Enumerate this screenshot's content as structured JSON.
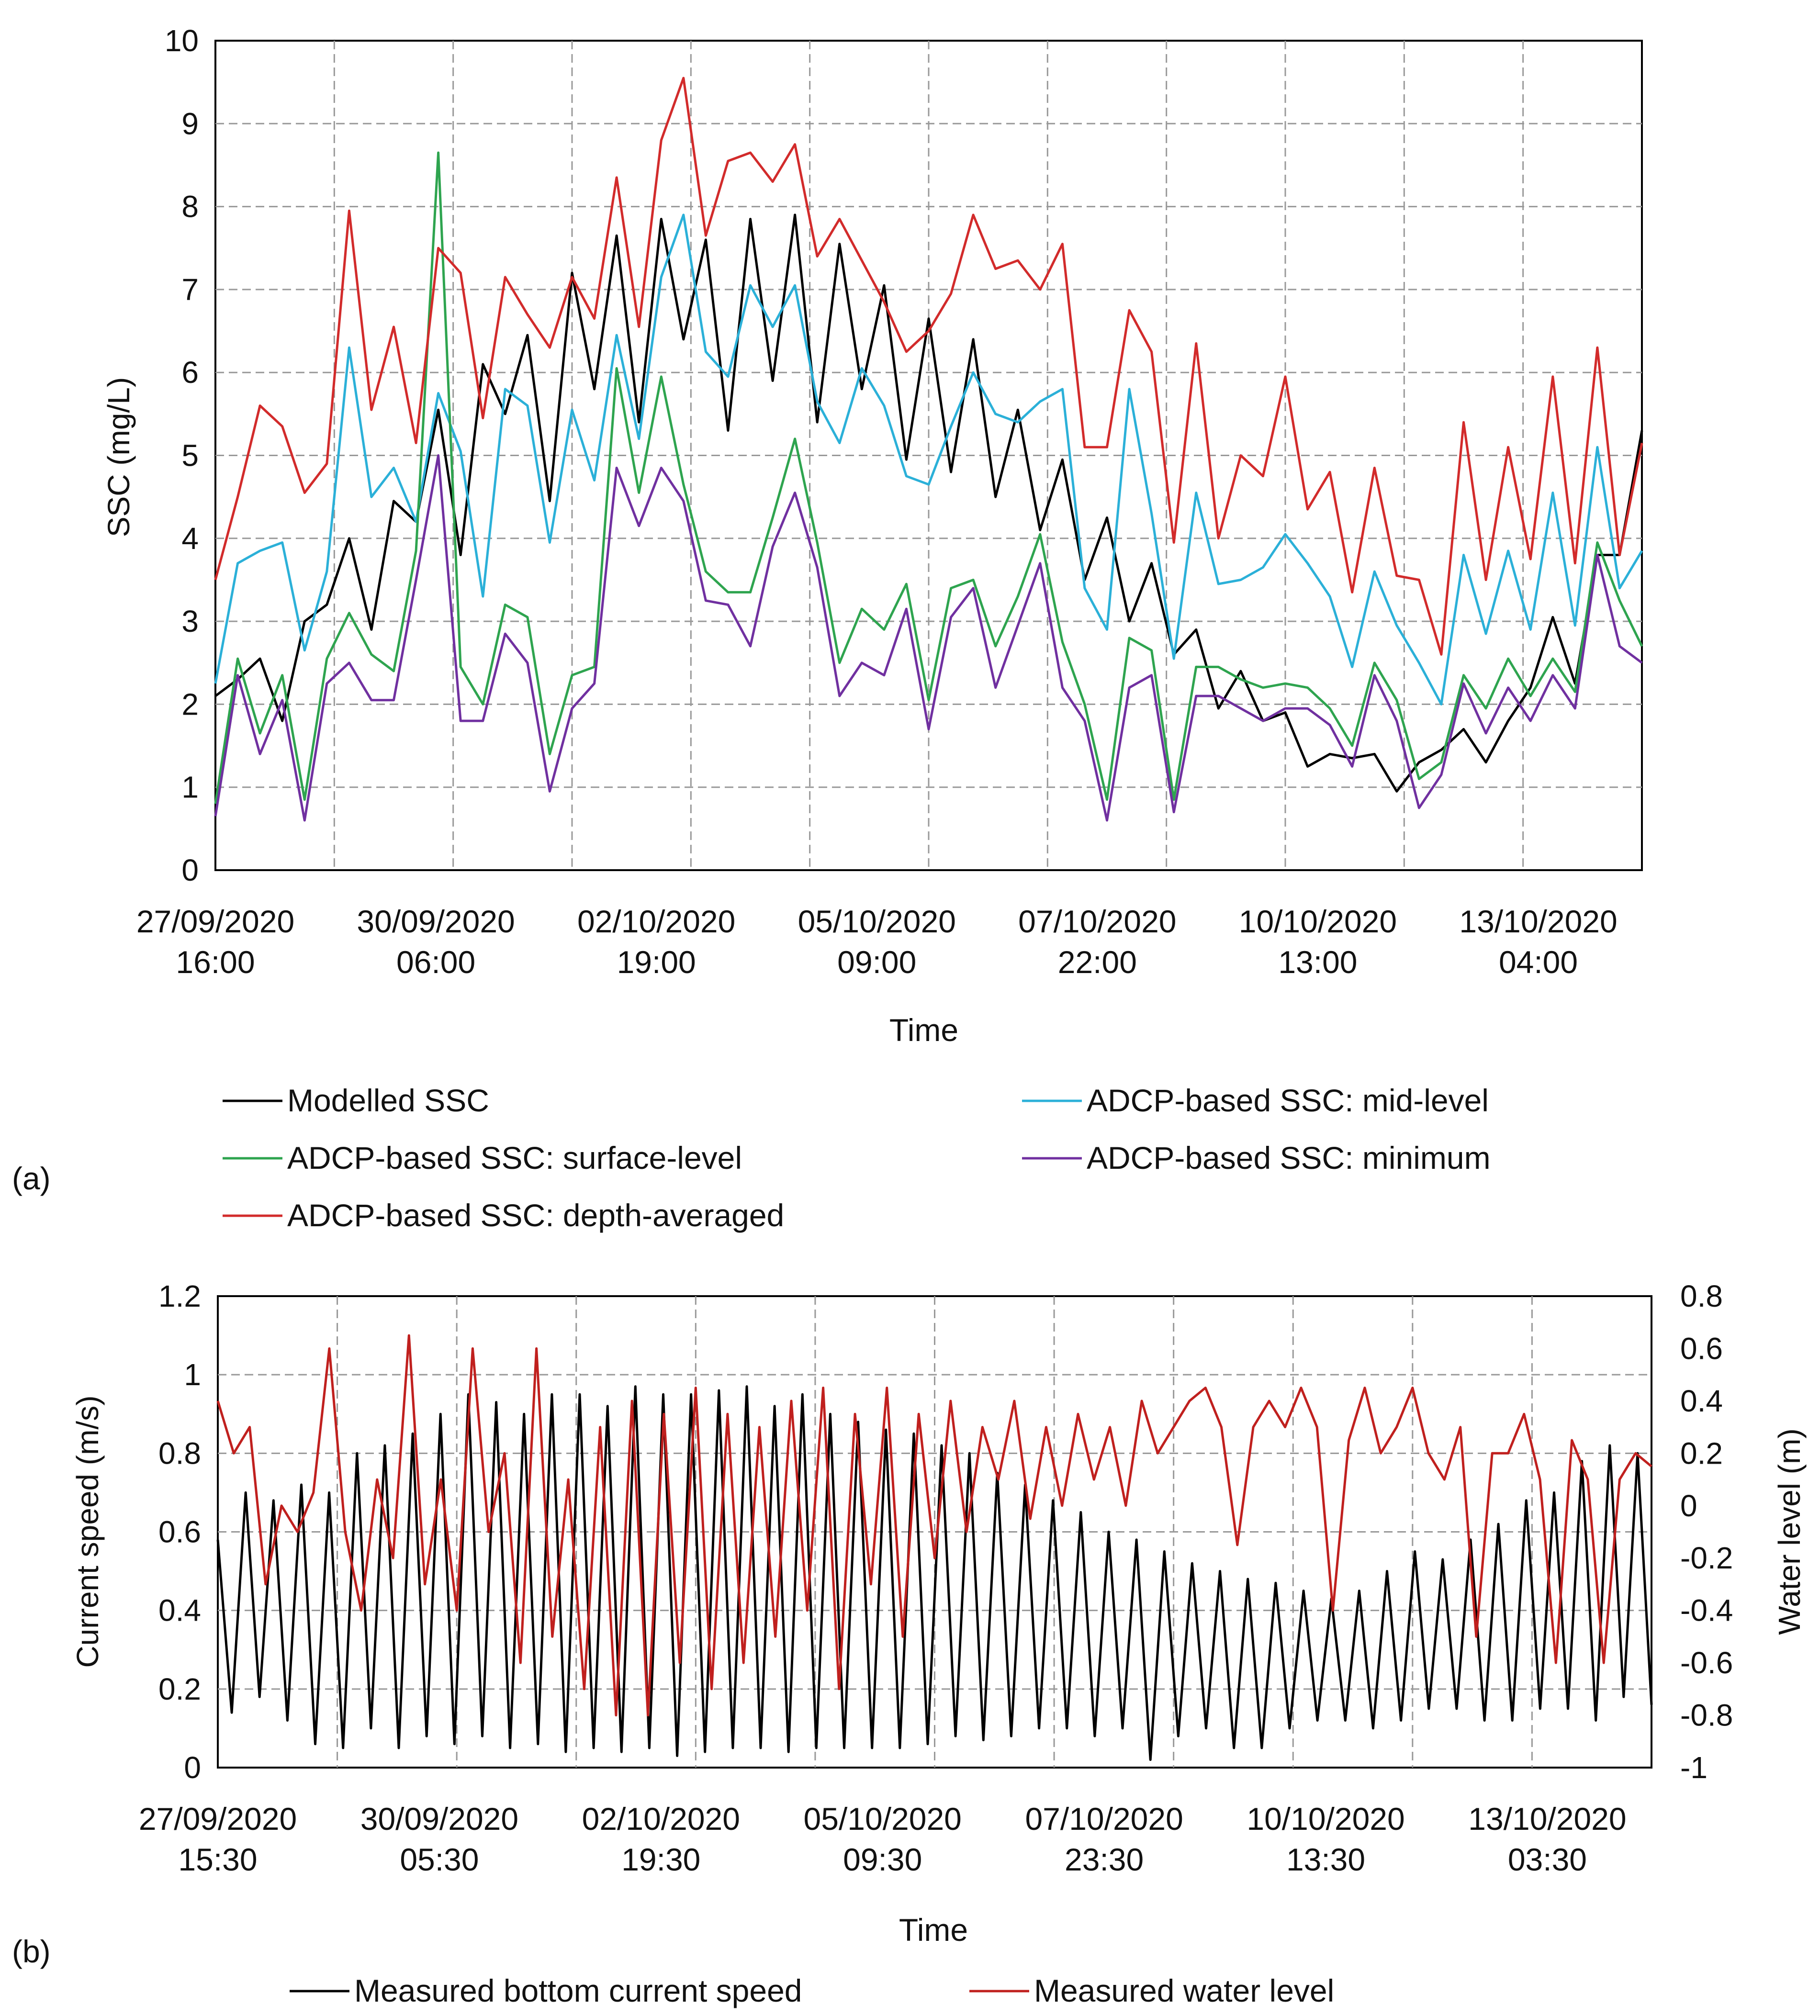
{
  "chart_data": [
    {
      "panel": "(a)",
      "type": "line",
      "ylabel": "SSC (mg/L)",
      "xlabel": "Time",
      "ylim": [
        0,
        10
      ],
      "yticks": [
        "0",
        "1",
        "2",
        "3",
        "4",
        "5",
        "6",
        "7",
        "8",
        "9",
        "10"
      ],
      "xtick_labels": [
        [
          "27/09/2020",
          "16:00"
        ],
        [
          "30/09/2020",
          "06:00"
        ],
        [
          "02/10/2020",
          "19:00"
        ],
        [
          "05/10/2020",
          "09:00"
        ],
        [
          "07/10/2020",
          "22:00"
        ],
        [
          "10/10/2020",
          "13:00"
        ],
        [
          "13/10/2020",
          "04:00"
        ]
      ],
      "grid": true,
      "legend_position": "bottom",
      "series": [
        {
          "name": "Modelled SSC",
          "color": "#000000",
          "values": [
            2.1,
            2.3,
            2.55,
            1.8,
            3.0,
            3.2,
            4.0,
            2.9,
            4.45,
            4.2,
            5.55,
            3.8,
            6.1,
            5.5,
            6.45,
            4.45,
            7.2,
            5.8,
            7.65,
            5.4,
            7.85,
            6.4,
            7.6,
            5.3,
            7.85,
            5.9,
            7.9,
            5.4,
            7.55,
            5.8,
            7.05,
            4.95,
            6.65,
            4.8,
            6.4,
            4.5,
            5.55,
            4.1,
            4.95,
            3.5,
            4.25,
            3.0,
            3.7,
            2.6,
            2.9,
            1.95,
            2.4,
            1.8,
            1.9,
            1.25,
            1.4,
            1.35,
            1.4,
            0.95,
            1.3,
            1.45,
            1.7,
            1.3,
            1.8,
            2.2,
            3.05,
            2.25,
            3.8,
            3.8,
            5.3
          ]
        },
        {
          "name": "ADCP-based SSC: mid-level",
          "color": "#2bb0d8",
          "values": [
            2.25,
            3.7,
            3.85,
            3.95,
            2.65,
            3.6,
            6.3,
            4.5,
            4.85,
            4.2,
            5.75,
            5.05,
            3.3,
            5.8,
            5.6,
            3.95,
            5.55,
            4.7,
            6.45,
            5.2,
            7.15,
            7.9,
            6.25,
            5.95,
            7.05,
            6.55,
            7.05,
            5.65,
            5.15,
            6.05,
            5.6,
            4.75,
            4.65,
            5.35,
            6.0,
            5.5,
            5.4,
            5.65,
            5.8,
            3.4,
            2.9,
            5.8,
            4.3,
            2.55,
            4.55,
            3.45,
            3.5,
            3.65,
            4.05,
            3.7,
            3.3,
            2.45,
            3.6,
            2.95,
            2.5,
            2.0,
            3.8,
            2.85,
            3.85,
            2.9,
            4.55,
            2.95,
            5.1,
            3.4,
            3.85
          ]
        },
        {
          "name": "ADCP-based SSC: surface-level",
          "color": "#2ea44f",
          "values": [
            0.8,
            2.55,
            1.65,
            2.35,
            0.85,
            2.55,
            3.1,
            2.6,
            2.4,
            3.85,
            8.65,
            2.45,
            2.0,
            3.2,
            3.05,
            1.4,
            2.35,
            2.45,
            6.05,
            4.55,
            5.95,
            4.65,
            3.6,
            3.35,
            3.35,
            4.25,
            5.2,
            3.95,
            2.5,
            3.15,
            2.9,
            3.45,
            2.05,
            3.4,
            3.5,
            2.7,
            3.3,
            4.05,
            2.75,
            2.0,
            0.85,
            2.8,
            2.65,
            0.85,
            2.45,
            2.45,
            2.3,
            2.2,
            2.25,
            2.2,
            1.95,
            1.5,
            2.5,
            2.05,
            1.1,
            1.3,
            2.35,
            1.95,
            2.55,
            2.1,
            2.55,
            2.15,
            3.95,
            3.25,
            2.7
          ]
        },
        {
          "name": "ADCP-based SSC: minimum",
          "color": "#7030a0",
          "values": [
            0.65,
            2.35,
            1.4,
            2.05,
            0.6,
            2.25,
            2.5,
            2.05,
            2.05,
            3.5,
            5.0,
            1.8,
            1.8,
            2.85,
            2.5,
            0.95,
            1.95,
            2.25,
            4.85,
            4.15,
            4.85,
            4.45,
            3.25,
            3.2,
            2.7,
            3.9,
            4.55,
            3.65,
            2.1,
            2.5,
            2.35,
            3.15,
            1.7,
            3.05,
            3.4,
            2.2,
            2.95,
            3.7,
            2.2,
            1.8,
            0.6,
            2.2,
            2.35,
            0.7,
            2.1,
            2.1,
            1.95,
            1.8,
            1.95,
            1.95,
            1.75,
            1.25,
            2.35,
            1.8,
            0.75,
            1.15,
            2.25,
            1.65,
            2.2,
            1.8,
            2.35,
            1.95,
            3.8,
            2.7,
            2.5
          ]
        },
        {
          "name": "ADCP-based SSC: depth-averaged",
          "color": "#d22b2b",
          "values": [
            3.5,
            4.5,
            5.6,
            5.35,
            4.55,
            4.9,
            7.95,
            5.55,
            6.55,
            5.15,
            7.5,
            7.2,
            5.45,
            7.15,
            6.7,
            6.3,
            7.15,
            6.65,
            8.35,
            6.55,
            8.8,
            9.55,
            7.65,
            8.55,
            8.65,
            8.3,
            8.75,
            7.4,
            7.85,
            7.35,
            6.85,
            6.25,
            6.5,
            6.95,
            7.9,
            7.25,
            7.35,
            7.0,
            7.55,
            5.1,
            5.1,
            6.75,
            6.25,
            3.95,
            6.35,
            4.0,
            5.0,
            4.75,
            5.95,
            4.35,
            4.8,
            3.35,
            4.85,
            3.55,
            3.5,
            2.6,
            5.4,
            3.5,
            5.1,
            3.75,
            5.95,
            3.7,
            6.3,
            3.8,
            5.15
          ]
        }
      ]
    },
    {
      "panel": "(b)",
      "type": "line",
      "xlabel": "Time",
      "ylabel_left": "Current speed (m/s)",
      "ylabel_right": "Water level (m)",
      "ylim_left": [
        0,
        1.2
      ],
      "ylim_right": [
        -1,
        0.8
      ],
      "yticks_left": [
        "0",
        "0.2",
        "0.4",
        "0.6",
        "0.8",
        "1",
        "1.2"
      ],
      "yticks_right": [
        "-1",
        "-0.8",
        "-0.6",
        "-0.4",
        "-0.2",
        "0",
        "0.2",
        "0.4",
        "0.6",
        "0.8"
      ],
      "xtick_labels": [
        [
          "27/09/2020",
          "15:30"
        ],
        [
          "30/09/2020",
          "05:30"
        ],
        [
          "02/10/2020",
          "19:30"
        ],
        [
          "05/10/2020",
          "09:30"
        ],
        [
          "07/10/2020",
          "23:30"
        ],
        [
          "10/10/2020",
          "13:30"
        ],
        [
          "13/10/2020",
          "03:30"
        ]
      ],
      "grid": true,
      "legend_position": "bottom",
      "series": [
        {
          "name": "Measured bottom current speed",
          "color": "#000000",
          "axis": "left",
          "values": [
            0.58,
            0.14,
            0.7,
            0.18,
            0.68,
            0.12,
            0.72,
            0.06,
            0.7,
            0.05,
            0.8,
            0.1,
            0.82,
            0.05,
            0.85,
            0.08,
            0.9,
            0.06,
            0.95,
            0.08,
            0.93,
            0.05,
            0.9,
            0.06,
            0.95,
            0.04,
            0.95,
            0.05,
            0.92,
            0.04,
            0.97,
            0.05,
            0.95,
            0.03,
            0.95,
            0.04,
            0.96,
            0.05,
            0.97,
            0.05,
            0.92,
            0.04,
            0.95,
            0.05,
            0.9,
            0.05,
            0.88,
            0.05,
            0.86,
            0.05,
            0.85,
            0.06,
            0.82,
            0.08,
            0.8,
            0.07,
            0.75,
            0.08,
            0.72,
            0.1,
            0.68,
            0.1,
            0.65,
            0.08,
            0.6,
            0.1,
            0.58,
            0.02,
            0.55,
            0.08,
            0.52,
            0.1,
            0.5,
            0.05,
            0.48,
            0.05,
            0.47,
            0.1,
            0.45,
            0.12,
            0.43,
            0.12,
            0.45,
            0.1,
            0.5,
            0.12,
            0.55,
            0.15,
            0.53,
            0.15,
            0.58,
            0.12,
            0.62,
            0.12,
            0.68,
            0.15,
            0.7,
            0.15,
            0.78,
            0.12,
            0.82,
            0.18,
            0.8,
            0.16
          ]
        },
        {
          "name": "Measured water level",
          "color": "#c0201e",
          "axis": "right",
          "values": [
            0.4,
            0.2,
            0.3,
            -0.3,
            0.0,
            -0.1,
            0.05,
            0.6,
            -0.1,
            -0.4,
            0.1,
            -0.2,
            0.65,
            -0.3,
            0.1,
            -0.4,
            0.6,
            -0.1,
            0.2,
            -0.6,
            0.6,
            -0.5,
            0.1,
            -0.7,
            0.3,
            -0.8,
            0.4,
            -0.8,
            0.35,
            -0.6,
            0.45,
            -0.7,
            0.35,
            -0.6,
            0.3,
            -0.5,
            0.4,
            -0.4,
            0.45,
            -0.7,
            0.35,
            -0.3,
            0.45,
            -0.5,
            0.35,
            -0.2,
            0.4,
            -0.1,
            0.3,
            0.1,
            0.4,
            -0.05,
            0.3,
            0.0,
            0.35,
            0.1,
            0.3,
            0.0,
            0.4,
            0.2,
            0.3,
            0.4,
            0.45,
            0.3,
            -0.15,
            0.3,
            0.4,
            0.3,
            0.45,
            0.3,
            -0.4,
            0.25,
            0.45,
            0.2,
            0.3,
            0.45,
            0.2,
            0.1,
            0.3,
            -0.5,
            0.2,
            0.2,
            0.35,
            0.1,
            -0.6,
            0.25,
            0.1,
            -0.6,
            0.1,
            0.2,
            0.15
          ]
        }
      ]
    }
  ]
}
